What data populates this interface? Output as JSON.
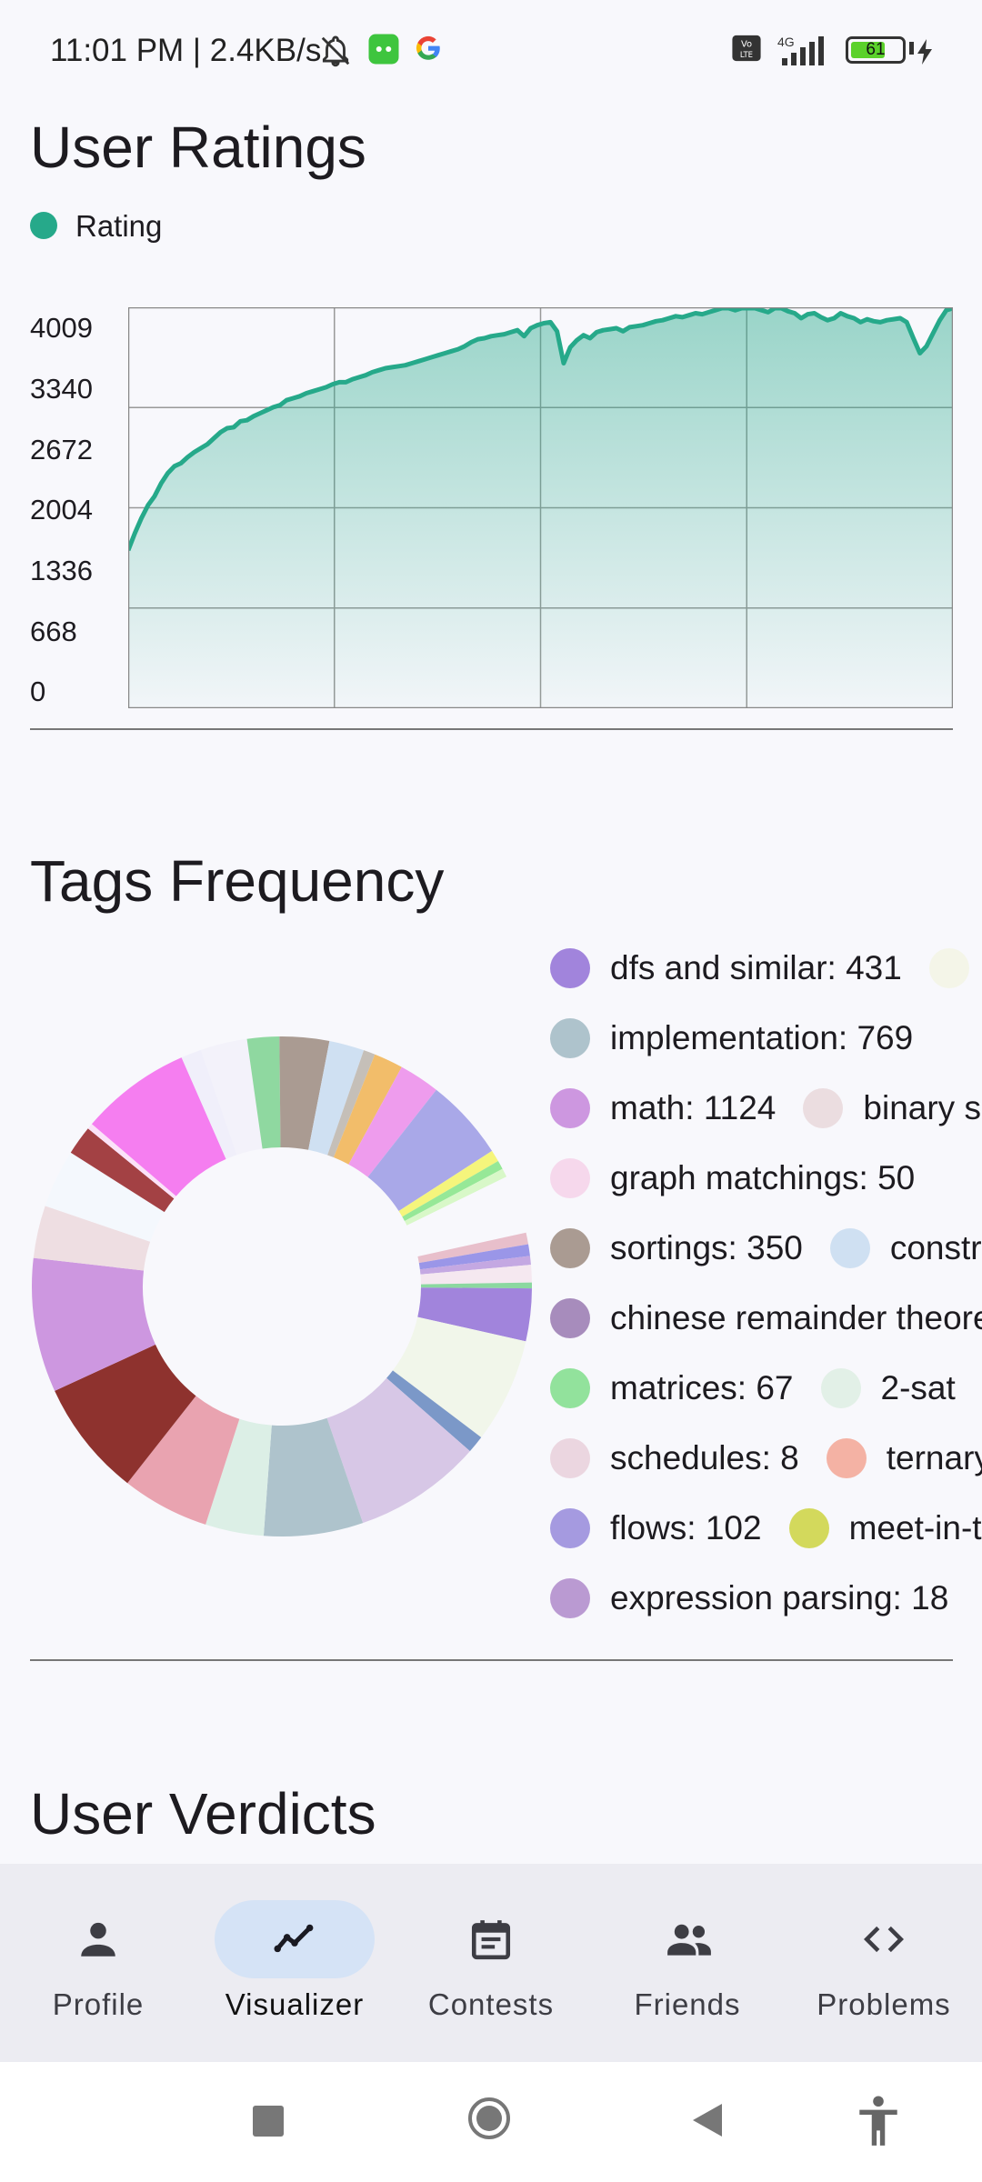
{
  "status_bar": {
    "text": "11:01 PM | 2.4KB/s",
    "network": "4G",
    "battery": "61"
  },
  "ratings": {
    "title": "User Ratings",
    "legend_label": "Rating"
  },
  "chart_data": {
    "type": "area",
    "series": [
      {
        "name": "Rating",
        "color": "#26a98a",
        "values": [
          1580,
          1750,
          1900,
          2030,
          2120,
          2250,
          2350,
          2420,
          2450,
          2510,
          2560,
          2600,
          2640,
          2700,
          2760,
          2800,
          2810,
          2870,
          2880,
          2920,
          2950,
          2980,
          3010,
          3030,
          3080,
          3100,
          3120,
          3150,
          3170,
          3190,
          3210,
          3240,
          3260,
          3260,
          3290,
          3310,
          3330,
          3360,
          3380,
          3400,
          3410,
          3420,
          3430,
          3450,
          3470,
          3490,
          3510,
          3530,
          3550,
          3570,
          3590,
          3620,
          3660,
          3690,
          3700,
          3720,
          3730,
          3740,
          3760,
          3780,
          3720,
          3800,
          3830,
          3850,
          3860,
          3770,
          3450,
          3610,
          3680,
          3730,
          3700,
          3760,
          3780,
          3790,
          3800,
          3770,
          3810,
          3820,
          3830,
          3850,
          3870,
          3880,
          3900,
          3920,
          3910,
          3930,
          3950,
          3940,
          3960,
          3980,
          4000,
          4010,
          3980,
          4020,
          4030,
          4000,
          3980,
          3960,
          4010,
          4020,
          3970,
          3950,
          3900,
          3940,
          3950,
          3910,
          3880,
          3900,
          3950,
          3920,
          3900,
          3860,
          3890,
          3870,
          3860,
          3880,
          3890,
          3900,
          3860,
          3700,
          3550,
          3620,
          3750,
          3880,
          3980,
          4100
        ]
      }
    ],
    "y_ticks": [
      "4009",
      "3340",
      "2672",
      "2004",
      "1336",
      "668",
      "0"
    ],
    "ylim": [
      0,
      4009
    ],
    "grid": true,
    "legend_position": "top-left"
  },
  "tags": {
    "title": "Tags Frequency",
    "legend": [
      [
        {
          "label": "dfs and similar: 431",
          "color": "#a184dc"
        },
        {
          "label": "",
          "color": "#f4f5e8"
        }
      ],
      [
        {
          "label": "implementation: 769",
          "color": "#aec3cc"
        }
      ],
      [
        {
          "label": "math: 1124",
          "color": "#cd97e0"
        },
        {
          "label": "binary search",
          "color": "#ebdde0"
        }
      ],
      [
        {
          "label": "graph matchings: 50",
          "color": "#f6d8ec"
        }
      ],
      [
        {
          "label": "sortings: 350",
          "color": "#aa9b92"
        },
        {
          "label": "constructive algorithms",
          "color": "#cfe0f2"
        }
      ],
      [
        {
          "label": "chinese remainder theorem",
          "color": "#a78cbc"
        }
      ],
      [
        {
          "label": "matrices: 67",
          "color": "#92e29c"
        },
        {
          "label": "2-sat",
          "color": "#e2f0e7"
        }
      ],
      [
        {
          "label": "schedules: 8",
          "color": "#ebd6e0"
        },
        {
          "label": "ternary search",
          "color": "#f4b2a4"
        }
      ],
      [
        {
          "label": "flows: 102",
          "color": "#a59ae0"
        },
        {
          "label": "meet-in-the-middle",
          "color": "#d3d95c"
        }
      ],
      [
        {
          "label": "expression parsing: 18",
          "color": "#ba9ad2"
        }
      ]
    ]
  },
  "verdicts": {
    "title": "User Verdicts"
  },
  "nav": {
    "items": [
      {
        "label": "Profile",
        "icon": "person-icon"
      },
      {
        "label": "Visualizer",
        "icon": "chart-line-icon"
      },
      {
        "label": "Contests",
        "icon": "calendar-icon"
      },
      {
        "label": "Friends",
        "icon": "people-icon"
      },
      {
        "label": "Problems",
        "icon": "code-icon"
      }
    ],
    "active": "Visualizer"
  },
  "donut_segments": [
    {
      "color": "#f3f2fa",
      "value": 16
    },
    {
      "color": "#8fd8a0",
      "value": 11
    },
    {
      "color": "#aa9b92",
      "value": 17
    },
    {
      "color": "#cfe0f2",
      "value": 12
    },
    {
      "color": "#c5bfb8",
      "value": 4
    },
    {
      "color": "#f2bd6a",
      "value": 10
    },
    {
      "color": "#ee9ced",
      "value": 14
    },
    {
      "color": "#a9a8e8",
      "value": 28
    },
    {
      "color": "#f5f57c",
      "value": 4
    },
    {
      "color": "#96e897",
      "value": 3
    },
    {
      "color": "#d8f8c8",
      "value": 3
    },
    {
      "color": "#f8f8fc",
      "value": 20
    },
    {
      "color": "#e8bfcb",
      "value": 4
    },
    {
      "color": "#9a96e8",
      "value": 4
    },
    {
      "color": "#c4a8e2",
      "value": 3
    },
    {
      "color": "#f5e8f0",
      "value": 6
    },
    {
      "color": "#8bd8a0",
      "value": 2
    },
    {
      "color": "#a184dc",
      "value": 18
    },
    {
      "color": "#f1f6ea",
      "value": 36
    },
    {
      "color": "#7b98c8",
      "value": 6
    },
    {
      "color": "#d7c7e6",
      "value": 44
    },
    {
      "color": "#aec3cc",
      "value": 34
    },
    {
      "color": "#dcefe6",
      "value": 20
    },
    {
      "color": "#e9a3b0",
      "value": 30
    },
    {
      "color": "#8e322e",
      "value": 40
    },
    {
      "color": "#cd97e0",
      "value": 46
    },
    {
      "color": "#eedee2",
      "value": 18
    },
    {
      "color": "#f4f8fd",
      "value": 20
    },
    {
      "color": "#a34144",
      "value": 10
    },
    {
      "color": "#fbe2f8",
      "value": 2
    },
    {
      "color": "#f57ef0",
      "value": 38
    },
    {
      "color": "#f0effa",
      "value": 7
    }
  ]
}
